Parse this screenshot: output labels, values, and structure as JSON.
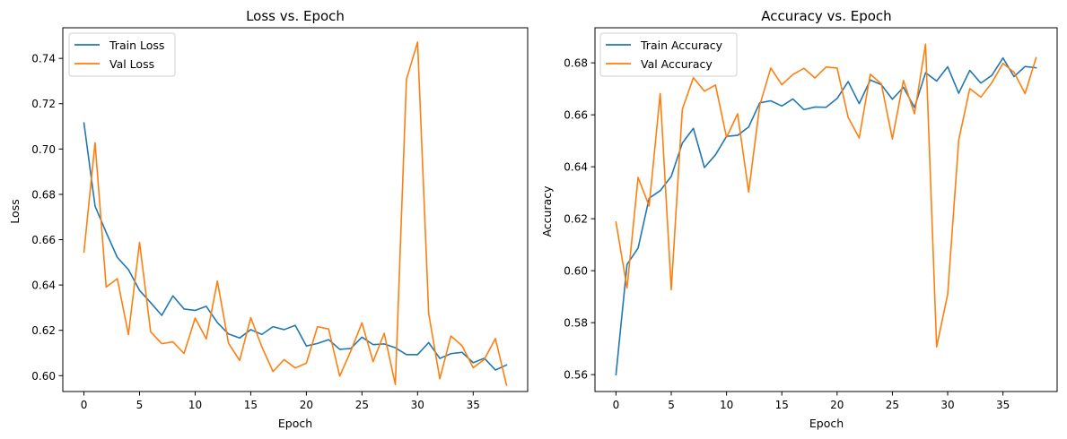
{
  "chart_data": [
    {
      "type": "line",
      "title": "Loss vs. Epoch",
      "xlabel": "Epoch",
      "ylabel": "Loss",
      "xlim": [
        -1.9,
        39.9
      ],
      "ylim": [
        0.593,
        0.7535
      ],
      "xticks": [
        0,
        5,
        10,
        15,
        20,
        25,
        30,
        35
      ],
      "yticks": [
        0.6,
        0.62,
        0.64,
        0.66,
        0.68,
        0.7,
        0.72,
        0.74
      ],
      "ytick_labels": [
        "0.60",
        "0.62",
        "0.64",
        "0.66",
        "0.68",
        "0.70",
        "0.72",
        "0.74"
      ],
      "grid": false,
      "legend_position": "top-left",
      "x": [
        0,
        1,
        2,
        3,
        4,
        5,
        6,
        7,
        8,
        9,
        10,
        11,
        12,
        13,
        14,
        15,
        16,
        17,
        18,
        19,
        20,
        21,
        22,
        23,
        24,
        25,
        26,
        27,
        28,
        29,
        30,
        31,
        32,
        33,
        34,
        35,
        36,
        37,
        38
      ],
      "series": [
        {
          "name": "Train Loss",
          "color": "#1f77b4",
          "values": [
            0.7115,
            0.6748,
            0.6632,
            0.6522,
            0.6468,
            0.6376,
            0.6322,
            0.6266,
            0.6352,
            0.6294,
            0.6288,
            0.6306,
            0.6234,
            0.6184,
            0.6166,
            0.6203,
            0.6182,
            0.6216,
            0.6203,
            0.6222,
            0.6131,
            0.6142,
            0.6159,
            0.6116,
            0.612,
            0.617,
            0.6137,
            0.614,
            0.6123,
            0.6093,
            0.6093,
            0.6146,
            0.6076,
            0.6097,
            0.6103,
            0.6057,
            0.6077,
            0.6025,
            0.6047
          ]
        },
        {
          "name": "Val Loss",
          "color": "#ff7f0e",
          "values": [
            0.6545,
            0.7028,
            0.6391,
            0.6428,
            0.6181,
            0.6588,
            0.6193,
            0.6141,
            0.6149,
            0.6098,
            0.6254,
            0.6162,
            0.6417,
            0.6143,
            0.6067,
            0.6256,
            0.6127,
            0.6018,
            0.6071,
            0.6034,
            0.6055,
            0.6216,
            0.6206,
            0.5998,
            0.6109,
            0.6233,
            0.6062,
            0.6187,
            0.5961,
            0.7307,
            0.7472,
            0.6274,
            0.5986,
            0.6175,
            0.6132,
            0.6035,
            0.6072,
            0.6164,
            0.5958
          ]
        }
      ]
    },
    {
      "type": "line",
      "title": "Accuracy vs. Epoch",
      "xlabel": "Epoch",
      "ylabel": "Accuracy",
      "xlim": [
        -1.9,
        39.9
      ],
      "ylim": [
        0.5535,
        0.6935
      ],
      "xticks": [
        0,
        5,
        10,
        15,
        20,
        25,
        30,
        35
      ],
      "yticks": [
        0.56,
        0.58,
        0.6,
        0.62,
        0.64,
        0.66,
        0.68
      ],
      "ytick_labels": [
        "0.56",
        "0.58",
        "0.60",
        "0.62",
        "0.64",
        "0.66",
        "0.68"
      ],
      "grid": false,
      "legend_position": "top-left",
      "x": [
        0,
        1,
        2,
        3,
        4,
        5,
        6,
        7,
        8,
        9,
        10,
        11,
        12,
        13,
        14,
        15,
        16,
        17,
        18,
        19,
        20,
        21,
        22,
        23,
        24,
        25,
        26,
        27,
        28,
        29,
        30,
        31,
        32,
        33,
        34,
        35,
        36,
        37,
        38
      ],
      "series": [
        {
          "name": "Train Accuracy",
          "color": "#1f77b4",
          "values": [
            0.56,
            0.6024,
            0.6087,
            0.6279,
            0.6308,
            0.6363,
            0.6491,
            0.6548,
            0.6397,
            0.6446,
            0.6517,
            0.6521,
            0.6553,
            0.6646,
            0.6654,
            0.6634,
            0.6661,
            0.662,
            0.663,
            0.6629,
            0.6663,
            0.6728,
            0.6643,
            0.6734,
            0.6716,
            0.666,
            0.6706,
            0.6628,
            0.6762,
            0.673,
            0.6785,
            0.6683,
            0.6771,
            0.6722,
            0.6752,
            0.6819,
            0.6747,
            0.6786,
            0.6781
          ]
        },
        {
          "name": "Val Accuracy",
          "color": "#ff7f0e",
          "values": [
            0.6187,
            0.5933,
            0.6359,
            0.6249,
            0.6682,
            0.5927,
            0.6621,
            0.6743,
            0.6691,
            0.6715,
            0.6513,
            0.6604,
            0.6303,
            0.6636,
            0.678,
            0.6716,
            0.6755,
            0.6779,
            0.6742,
            0.6784,
            0.678,
            0.659,
            0.6511,
            0.6756,
            0.6719,
            0.6507,
            0.6732,
            0.6604,
            0.6872,
            0.5707,
            0.5909,
            0.6503,
            0.6701,
            0.6668,
            0.6724,
            0.6798,
            0.6764,
            0.6682,
            0.682
          ]
        }
      ]
    }
  ]
}
